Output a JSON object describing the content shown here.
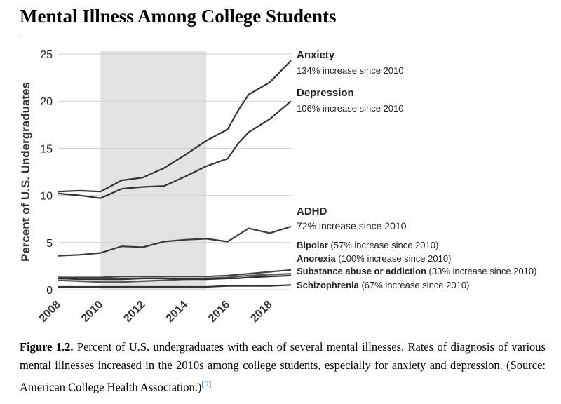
{
  "page": {
    "title": "Mental Illness Among College Students",
    "caption_label": "Figure 1.2.",
    "caption_text": "Percent of U.S. undergraduates with each of several mental illnesses. Rates of diagnosis of various mental illnesses increased in the 2010s among college students, especially for anxiety and depression. (Source: American College Health Association.)",
    "caption_ref": "[9]"
  },
  "chart_data": {
    "type": "line",
    "title": "",
    "xlabel": "",
    "ylabel": "Percent of U.S. Undergraduates",
    "xlim": [
      2008,
      2019
    ],
    "ylim": [
      0,
      25
    ],
    "x_ticks": [
      2008,
      2010,
      2012,
      2014,
      2016,
      2018
    ],
    "y_ticks": [
      0,
      5,
      10,
      15,
      20,
      25
    ],
    "grid": "horizontal",
    "highlight_span": [
      2010,
      2015
    ],
    "highlight_color": "#e3e3e3",
    "x": [
      2008,
      2009,
      2010,
      2011,
      2012,
      2013,
      2014,
      2015,
      2016,
      2016.5,
      2017,
      2018,
      2019
    ],
    "series": [
      {
        "name": "Anxiety",
        "note": "134% increase since 2010",
        "color": "#333333",
        "values": [
          10.4,
          10.5,
          10.4,
          11.6,
          11.9,
          12.9,
          14.3,
          15.8,
          17.0,
          19.0,
          20.7,
          22.0,
          24.3
        ]
      },
      {
        "name": "Depression",
        "note": "106% increase since 2010",
        "color": "#333333",
        "values": [
          10.2,
          10.0,
          9.7,
          10.7,
          10.9,
          11.0,
          12.0,
          13.1,
          13.9,
          15.5,
          16.7,
          18.1,
          20.0
        ]
      },
      {
        "name": "ADHD",
        "note": "72% increase since 2010",
        "color": "#3a3a3a",
        "values": [
          3.6,
          3.7,
          3.9,
          4.6,
          4.5,
          5.1,
          5.3,
          5.4,
          5.1,
          5.8,
          6.5,
          6.0,
          6.7
        ]
      },
      {
        "name": "Bipolar",
        "note": "(57% increase since 2010)",
        "color": "#444444",
        "values": [
          1.3,
          1.3,
          1.3,
          1.4,
          1.4,
          1.4,
          1.4,
          1.4,
          1.5,
          1.6,
          1.7,
          1.9,
          2.1
        ]
      },
      {
        "name": "Anorexia",
        "note": "(100% increase since 2010)",
        "color": "#555555",
        "values": [
          1.0,
          0.9,
          0.8,
          0.8,
          0.9,
          1.0,
          1.1,
          1.2,
          1.3,
          1.4,
          1.5,
          1.6,
          1.7
        ]
      },
      {
        "name": "Substance abuse or addiction",
        "note": "(33% increase since 2010)",
        "color": "#2f2f2f",
        "values": [
          1.2,
          1.1,
          1.1,
          1.1,
          1.2,
          1.2,
          1.1,
          1.1,
          1.2,
          1.2,
          1.3,
          1.4,
          1.5
        ]
      },
      {
        "name": "Schizophrenia",
        "note": "(67% increase since 2010)",
        "color": "#333333",
        "values": [
          0.3,
          0.3,
          0.3,
          0.3,
          0.3,
          0.3,
          0.3,
          0.3,
          0.4,
          0.4,
          0.4,
          0.4,
          0.5
        ]
      }
    ]
  }
}
